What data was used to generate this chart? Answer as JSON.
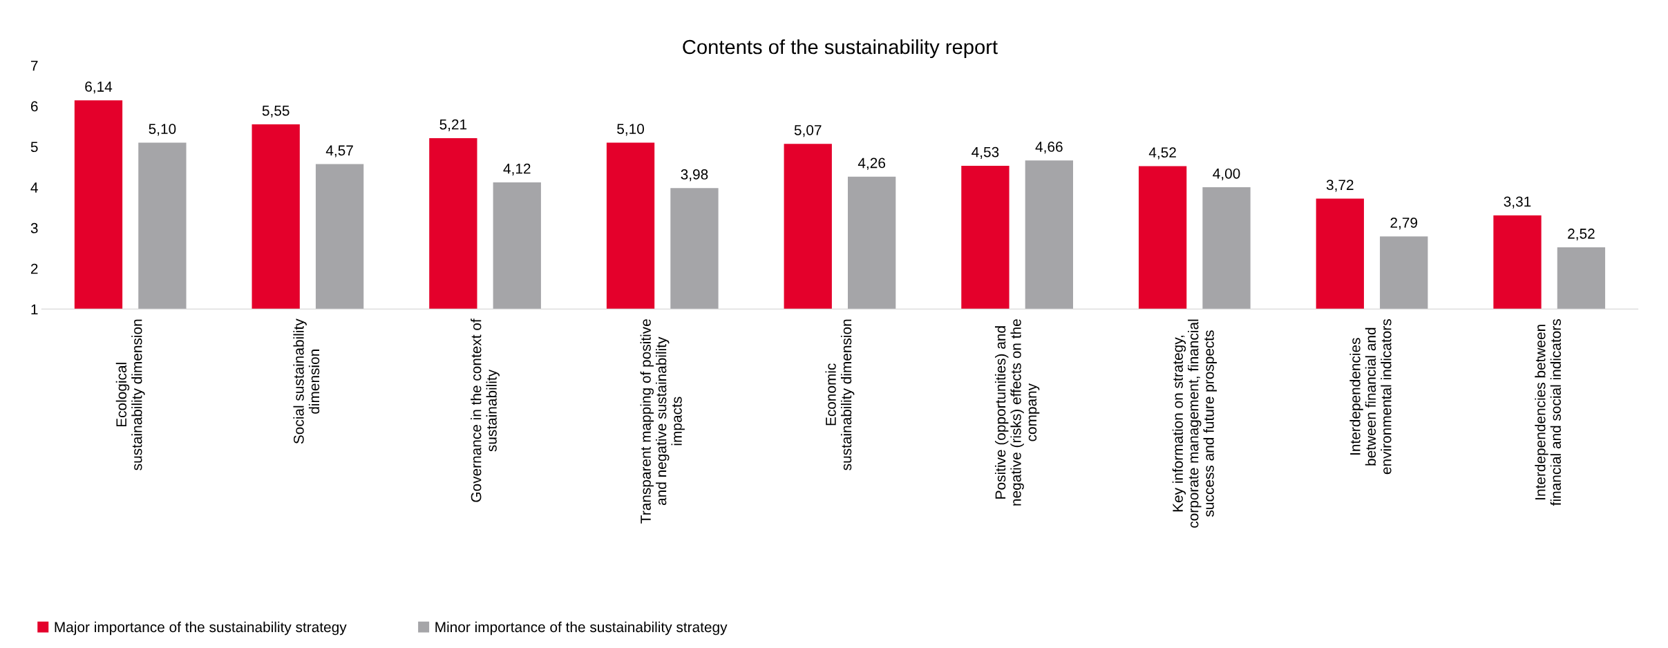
{
  "chart_data": {
    "type": "bar",
    "title": "Contents of the sustainability report",
    "categories": [
      "Ecological\nsustainability dimension",
      "Social sustainability\ndimension",
      "Governance in the context of\nsustainability",
      "Transparent mapping of positive\nand negative sustainability\nimpacts",
      "Economic\nsustainability dimension",
      "Positive (opportunities) and\nnegative (risks) effects on the\ncompany",
      "Key information on strategy,\ncorporate management, financial\nsuccess and future prospects",
      "Interdependencies\nbetween financial and\nenvironmental indicators",
      "Interdependencies between\nfinancial and social indicators"
    ],
    "series": [
      {
        "name": "Major importance of the sustainability strategy",
        "color": "#e4002b",
        "values": [
          6.14,
          5.55,
          5.21,
          5.1,
          5.07,
          4.53,
          4.52,
          3.72,
          3.31
        ],
        "value_labels": [
          "6,14",
          "5,55",
          "5,21",
          "5,10",
          "5,07",
          "4,53",
          "4,52",
          "3,72",
          "3,31"
        ]
      },
      {
        "name": "Minor importance of the sustainability strategy",
        "color": "#a5a5a8",
        "values": [
          5.1,
          4.57,
          4.12,
          3.98,
          4.26,
          4.66,
          4.0,
          2.79,
          2.52
        ],
        "value_labels": [
          "5,10",
          "4,57",
          "4,12",
          "3,98",
          "4,26",
          "4,66",
          "4,00",
          "2,79",
          "2,52"
        ]
      }
    ],
    "ylim": [
      1,
      7
    ],
    "yticks": [
      1,
      2,
      3,
      4,
      5,
      6,
      7
    ],
    "grid": false,
    "legend": "bottom left"
  }
}
